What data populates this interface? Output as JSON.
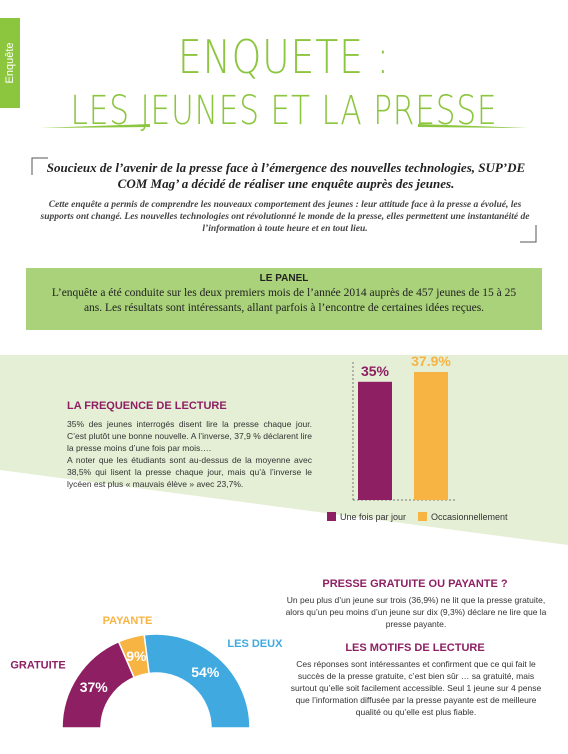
{
  "tab": "Enquête",
  "header": {
    "title": "ENQUETE :",
    "subtitle": "LES JEUNES ET LA PRESSE"
  },
  "intro": {
    "lead": "Soucieux de l’avenir de la presse face à l’émergence des nouvelles technologies, SUP’DE COM Mag’ a décidé de réaliser une enquête auprès des jeunes.",
    "body": "Cette enquête a permis de comprendre les nouveaux comportement des jeunes : leur attitude face à la presse a évolué, les supports ont changé. Les nouvelles technologies ont révolutionné le monde de la presse, elles permettent une instantanéité de l’information à toute heure et en tout lieu."
  },
  "panel": {
    "title": "LE PANEL",
    "text": "L’enquête a été conduite sur les deux premiers mois de l’année 2014 auprès de 457 jeunes de 15 à 25 ans. Les résultats sont intéressants, allant parfois à l’encontre de certaines idées reçues."
  },
  "frequency": {
    "title": "LA FREQUENCE DE LECTURE",
    "paragraphs": [
      "35% des jeunes interrogés disent lire la presse chaque jour. C’est plutôt une bonne nouvelle. A l’inverse, 37,9 % déclarent lire la presse moins d’une fois par mois….",
      "A noter que les étudiants sont au-dessus de la moyenne avec 38,5% qui lisent la presse chaque jour, mais qu’à l’inverse le lycéen est plus « mauvais élève » avec 23,7%."
    ]
  },
  "gratuite": {
    "title": "PRESSE GRATUITE OU PAYANTE ?",
    "text": "Un peu plus d’un jeune sur trois (36,9%) ne lit que la presse gratuite, alors qu’un peu moins d’un jeune sur dix (9,3%) déclare ne lire que la presse payante."
  },
  "motifs": {
    "title": "LES MOTIFS DE LECTURE",
    "text": "Ces réponses sont intéressantes et confirment que ce qui fait le succès de la presse gratuite, c’est bien sûr … sa gratuité, mais surtout qu’elle soit facilement accessible. Seul 1 jeune sur 4 pense que l’information diffusée par la presse payante est de meilleure qualité ou qu’elle est plus fiable."
  },
  "chart_data": [
    {
      "type": "bar",
      "categories": [
        null
      ],
      "series": [
        {
          "name": "Une fois par jour",
          "color": "#8e1f63",
          "values": [
            35
          ],
          "value_labels": [
            "35%"
          ]
        },
        {
          "name": "Occasionnellement",
          "color": "#f7b443",
          "values": [
            37.9
          ],
          "value_labels": [
            "37.9%"
          ]
        }
      ]
    },
    {
      "type": "pie",
      "categories": [
        "GRATUITE",
        "PAYANTE",
        "LES DEUX"
      ],
      "values": [
        37,
        9,
        54
      ],
      "value_labels": [
        "37%",
        "9%",
        "54%"
      ],
      "colors": [
        "#8e1f63",
        "#f7b443",
        "#3fa9e0"
      ]
    }
  ]
}
